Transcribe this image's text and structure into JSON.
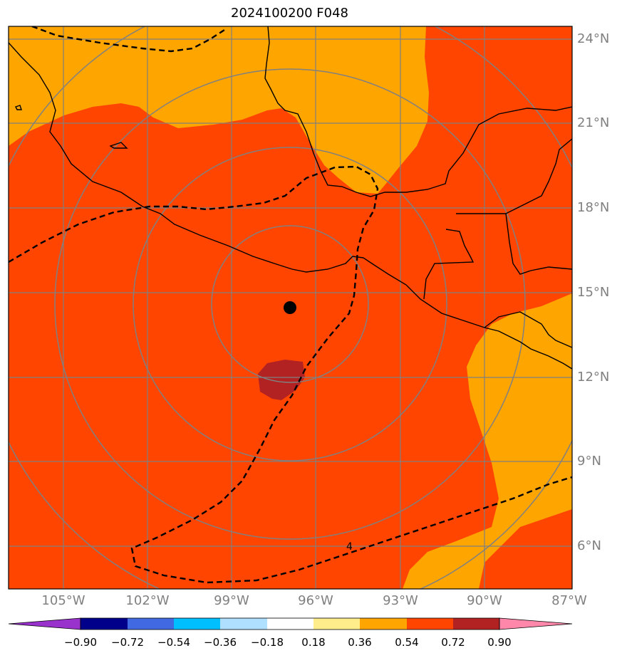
{
  "title": "2024100200 F048",
  "lat_labels": [
    "24°N",
    "21°N",
    "18°N",
    "15°N",
    "12°N",
    "9°N",
    "6°N"
  ],
  "lon_labels": [
    "105°W",
    "102°W",
    "99°W",
    "96°W",
    "93°W",
    "90°W",
    "87°W"
  ],
  "contour_label": "4",
  "colorbar": {
    "ticks": [
      "−0.90",
      "−0.72",
      "−0.54",
      "−0.36",
      "−0.18",
      "0.18",
      "0.36",
      "0.54",
      "0.72",
      "0.90"
    ],
    "colors": [
      "#9932cc",
      "#00008b",
      "#4169e1",
      "#00bfff",
      "#b0e0ff",
      "#ffffff",
      "#ffec8b",
      "#ffa500",
      "#ff4500",
      "#b22222",
      "#ff88aa"
    ]
  },
  "colors": {
    "orange": "#ffa500",
    "red_orange": "#ff4500",
    "dark_red": "#b22222",
    "grid": "#808080"
  },
  "storm_center": {
    "lat": 14.5,
    "lon": -97.0
  }
}
